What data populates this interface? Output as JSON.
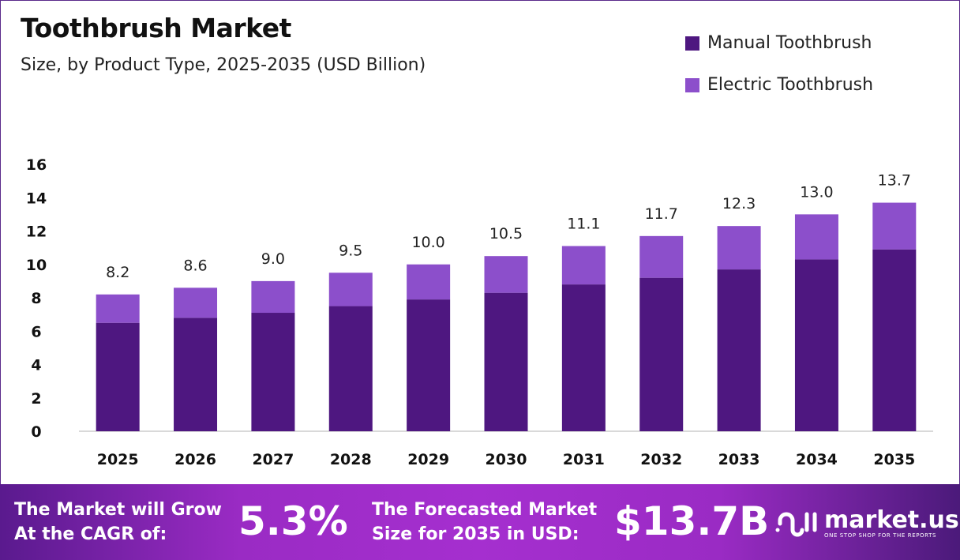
{
  "chart_data": {
    "type": "bar",
    "stacked": true,
    "title": "Toothbrush Market",
    "subtitle": "Size, by Product Type, 2025-2035 (USD Billion)",
    "categories": [
      "2025",
      "2026",
      "2027",
      "2028",
      "2029",
      "2030",
      "2031",
      "2032",
      "2033",
      "2034",
      "2035"
    ],
    "series": [
      {
        "name": "Manual Toothbrush",
        "color": "#4e1780",
        "values": [
          6.5,
          6.8,
          7.1,
          7.5,
          7.9,
          8.3,
          8.8,
          9.2,
          9.7,
          10.3,
          10.9
        ]
      },
      {
        "name": "Electric Toothbrush",
        "color": "#8c4fcb",
        "values": [
          1.7,
          1.8,
          1.9,
          2.0,
          2.1,
          2.2,
          2.3,
          2.5,
          2.6,
          2.7,
          2.8
        ]
      }
    ],
    "totals": [
      "8.2",
      "8.6",
      "9.0",
      "9.5",
      "10.0",
      "10.5",
      "11.1",
      "11.7",
      "12.3",
      "13.0",
      "13.7"
    ],
    "ylim": [
      0,
      16
    ],
    "yticks": [
      "0",
      "2",
      "4",
      "6",
      "8",
      "10",
      "12",
      "14",
      "16"
    ],
    "grid": false,
    "legend": "top-right"
  },
  "banner": {
    "cagr_label_1": "The Market will Grow",
    "cagr_label_2": "At the CAGR of:",
    "cagr_value": "5.3%",
    "forecast_label_1": "The Forecasted Market",
    "forecast_label_2": "Size for 2035 in USD:",
    "forecast_value": "$13.7B",
    "logo_name": "market.us",
    "logo_tagline": "ONE STOP SHOP FOR THE REPORTS"
  }
}
